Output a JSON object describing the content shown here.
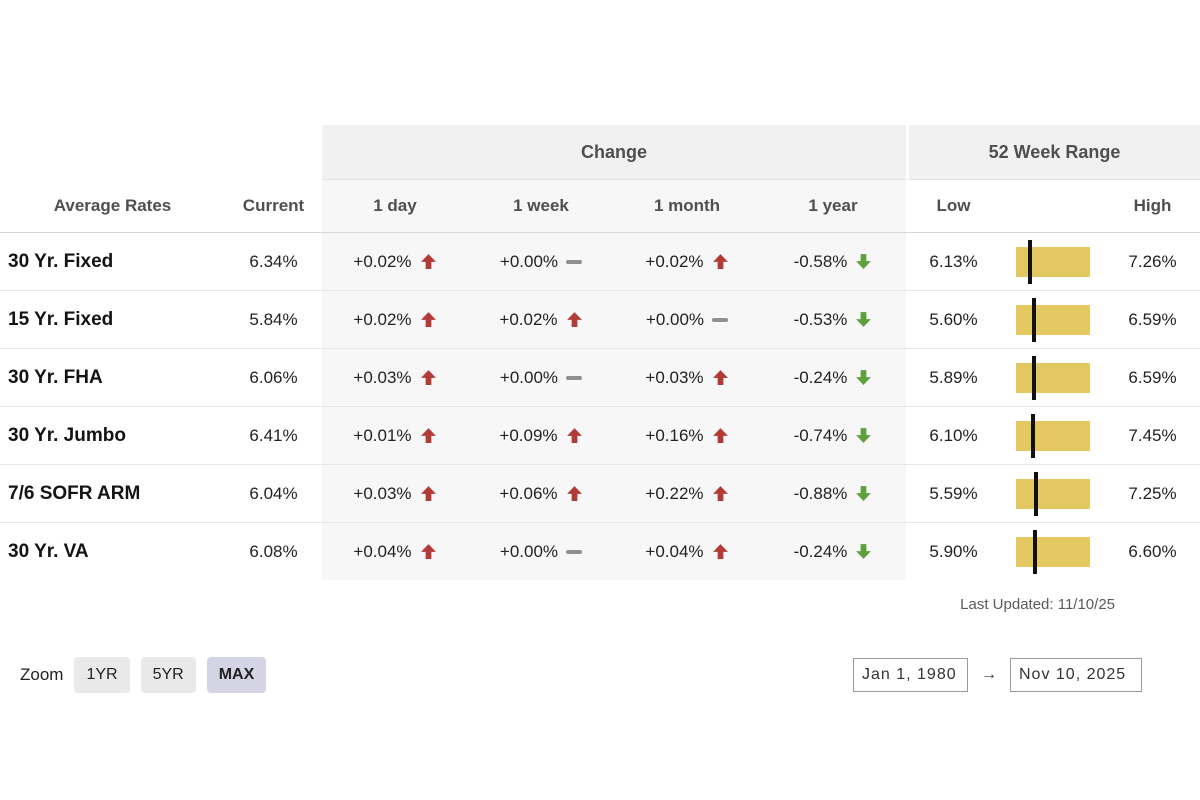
{
  "table": {
    "group_headers": {
      "change": "Change",
      "range": "52 Week Range"
    },
    "columns": {
      "average_rates": "Average Rates",
      "current": "Current",
      "day": "1 day",
      "week": "1 week",
      "month": "1 month",
      "year": "1 year",
      "low": "Low",
      "high": "High"
    },
    "rows": [
      {
        "label": "30 Yr. Fixed",
        "current": "6.34%",
        "changes": [
          {
            "value": "+0.02%",
            "dir": "up"
          },
          {
            "value": "+0.00%",
            "dir": "flat"
          },
          {
            "value": "+0.02%",
            "dir": "up"
          },
          {
            "value": "-0.58%",
            "dir": "down"
          }
        ],
        "low": "6.13%",
        "high": "7.26%",
        "marker_pct": 19
      },
      {
        "label": "15 Yr. Fixed",
        "current": "5.84%",
        "changes": [
          {
            "value": "+0.02%",
            "dir": "up"
          },
          {
            "value": "+0.02%",
            "dir": "up"
          },
          {
            "value": "+0.00%",
            "dir": "flat"
          },
          {
            "value": "-0.53%",
            "dir": "down"
          }
        ],
        "low": "5.60%",
        "high": "6.59%",
        "marker_pct": 24
      },
      {
        "label": "30 Yr. FHA",
        "current": "6.06%",
        "changes": [
          {
            "value": "+0.03%",
            "dir": "up"
          },
          {
            "value": "+0.00%",
            "dir": "flat"
          },
          {
            "value": "+0.03%",
            "dir": "up"
          },
          {
            "value": "-0.24%",
            "dir": "down"
          }
        ],
        "low": "5.89%",
        "high": "6.59%",
        "marker_pct": 24
      },
      {
        "label": "30 Yr. Jumbo",
        "current": "6.41%",
        "changes": [
          {
            "value": "+0.01%",
            "dir": "up"
          },
          {
            "value": "+0.09%",
            "dir": "up"
          },
          {
            "value": "+0.16%",
            "dir": "up"
          },
          {
            "value": "-0.74%",
            "dir": "down"
          }
        ],
        "low": "6.10%",
        "high": "7.45%",
        "marker_pct": 23
      },
      {
        "label": "7/6 SOFR ARM",
        "current": "6.04%",
        "changes": [
          {
            "value": "+0.03%",
            "dir": "up"
          },
          {
            "value": "+0.06%",
            "dir": "up"
          },
          {
            "value": "+0.22%",
            "dir": "up"
          },
          {
            "value": "-0.88%",
            "dir": "down"
          }
        ],
        "low": "5.59%",
        "high": "7.25%",
        "marker_pct": 27
      },
      {
        "label": "30 Yr. VA",
        "current": "6.08%",
        "changes": [
          {
            "value": "+0.04%",
            "dir": "up"
          },
          {
            "value": "+0.00%",
            "dir": "flat"
          },
          {
            "value": "+0.04%",
            "dir": "up"
          },
          {
            "value": "-0.24%",
            "dir": "down"
          }
        ],
        "low": "5.90%",
        "high": "6.60%",
        "marker_pct": 26
      }
    ],
    "last_updated": "Last Updated: 11/10/25"
  },
  "controls": {
    "zoom_label": "Zoom",
    "zoom_buttons": [
      {
        "label": "1YR",
        "active": false
      },
      {
        "label": "5YR",
        "active": false
      },
      {
        "label": "MAX",
        "active": true
      }
    ],
    "date_from": "Jan 1, 1980",
    "date_to": "Nov 10, 2025",
    "arrow": "→"
  },
  "colors": {
    "up": "#b23b38",
    "down": "#5f9f3e",
    "flat": "#8f8f8f",
    "band": "#f7f7f7",
    "header_bg": "#f1f1f1",
    "bar": "#e4c861",
    "marker": "#111111",
    "active_zoom_bg": "#d4d4e4"
  },
  "chart_data": {
    "type": "table",
    "title": "Average Rates — Change and 52 Week Range",
    "columns": [
      "Average Rates",
      "Current",
      "1 day",
      "1 week",
      "1 month",
      "1 year",
      "Low",
      "High"
    ],
    "rows": [
      [
        "30 Yr. Fixed",
        "6.34%",
        "+0.02%",
        "+0.00%",
        "+0.02%",
        "-0.58%",
        "6.13%",
        "7.26%"
      ],
      [
        "15 Yr. Fixed",
        "5.84%",
        "+0.02%",
        "+0.02%",
        "+0.00%",
        "-0.53%",
        "5.60%",
        "6.59%"
      ],
      [
        "30 Yr. FHA",
        "6.06%",
        "+0.03%",
        "+0.00%",
        "+0.03%",
        "-0.24%",
        "5.89%",
        "6.59%"
      ],
      [
        "30 Yr. Jumbo",
        "6.41%",
        "+0.01%",
        "+0.09%",
        "+0.16%",
        "-0.74%",
        "6.10%",
        "7.45%"
      ],
      [
        "7/6 SOFR ARM",
        "6.04%",
        "+0.03%",
        "+0.06%",
        "+0.22%",
        "-0.88%",
        "5.59%",
        "7.25%"
      ],
      [
        "30 Yr. VA",
        "6.08%",
        "+0.04%",
        "+0.00%",
        "+0.04%",
        "-0.24%",
        "5.90%",
        "6.60%"
      ]
    ],
    "notes": "Last Updated: 11/10/25; zoom controls 1YR/5YR/MAX (MAX selected); date range Jan 1, 1980 → Nov 10, 2025"
  }
}
